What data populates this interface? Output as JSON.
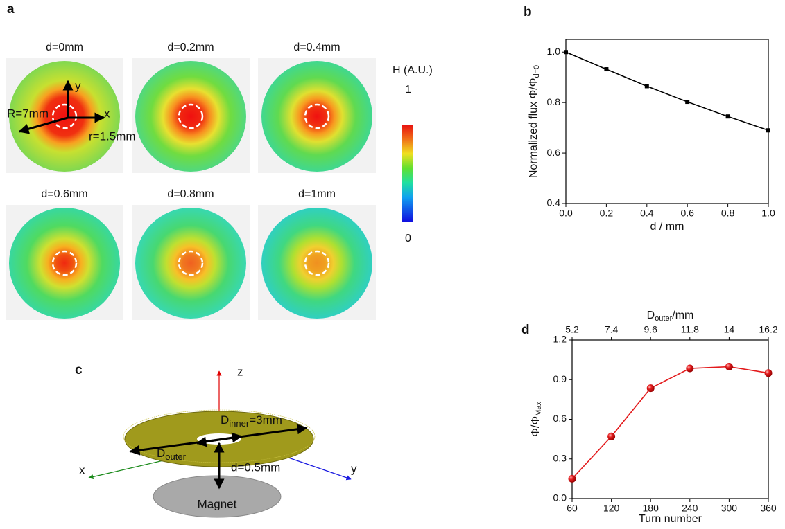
{
  "panel_a": {
    "label": "a",
    "maps": [
      {
        "title": "d=0mm"
      },
      {
        "title": "d=0.2mm"
      },
      {
        "title": "d=0.4mm"
      },
      {
        "title": "d=0.6mm"
      },
      {
        "title": "d=0.8mm"
      },
      {
        "title": "d=1mm"
      }
    ],
    "axis_y": "y",
    "axis_x": "x",
    "outer_radius": "R=7mm",
    "inner_radius": "r=1.5mm",
    "colorbar": {
      "title": "H (A.U.)",
      "max": "1",
      "min": "0"
    }
  },
  "panel_c": {
    "label": "c",
    "z": "z",
    "x": "x",
    "y": "y",
    "d_outer": "D",
    "d_outer_sub": "outer",
    "d_inner": "D",
    "d_inner_sub": "inner",
    "d_inner_value": "=3mm",
    "gap": "d=0.5mm",
    "magnet": "Magnet"
  },
  "chart_data": [
    {
      "type": "line",
      "panel_label": "b",
      "x_label": "d / mm",
      "y_label": "Normalized flux Φ/Φ",
      "y_label_sub": "d=0",
      "x": [
        0,
        0.2,
        0.4,
        0.6,
        0.8,
        1.0
      ],
      "values": [
        1.0,
        0.932,
        0.865,
        0.803,
        0.745,
        0.69
      ],
      "color": "#000000",
      "marker": "square",
      "xlim": [
        0,
        1
      ],
      "ylim": [
        0.4,
        1.05
      ],
      "xticks": [
        {
          "value": 0,
          "label": "0.0"
        },
        0.2,
        0.4,
        0.6,
        0.8,
        {
          "value": 1,
          "label": "1.0"
        }
      ],
      "yticks": [
        0.4,
        0.6,
        0.8,
        {
          "value": 1,
          "label": "1.0"
        }
      ]
    },
    {
      "type": "line",
      "panel_label": "d",
      "x_label": "Turn number",
      "y_label": "Φ/Φ",
      "y_label_sub": "Max",
      "x2_label": "D",
      "x2_label_sub": "outer",
      "x2_label_unit": "/mm",
      "x": [
        60,
        120,
        180,
        240,
        300,
        360
      ],
      "values": [
        0.15,
        0.47,
        0.835,
        0.985,
        0.998,
        0.95
      ],
      "color": "#e31a1c",
      "marker": "sphere",
      "xlim": [
        60,
        360
      ],
      "ylim": [
        0,
        1.2
      ],
      "xticks": [
        60,
        120,
        180,
        240,
        300,
        360
      ],
      "yticks": [
        {
          "value": 0,
          "label": "0.0"
        },
        0.3,
        0.6,
        0.9,
        {
          "value": 1.2,
          "label": "1.2"
        }
      ],
      "x2lim": [
        5.2,
        16.2
      ],
      "x2ticks": [
        5.2,
        7.4,
        9.6,
        11.8,
        14,
        16.2
      ]
    }
  ]
}
